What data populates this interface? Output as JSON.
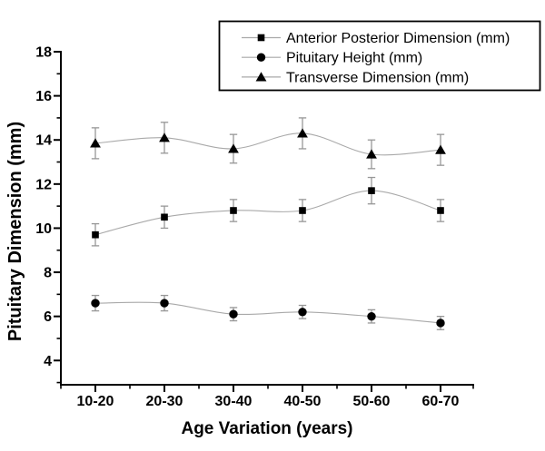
{
  "chart_data": {
    "type": "line",
    "title": "",
    "xlabel": "Age Variation (years)",
    "ylabel": "Pituitary Dimension (mm)",
    "categories": [
      "10-20",
      "20-30",
      "30-40",
      "40-50",
      "50-60",
      "60-70"
    ],
    "series": [
      {
        "name": "Anterior Posterior Dimension (mm)",
        "marker": "square",
        "values": [
          9.7,
          10.5,
          10.8,
          10.8,
          11.7,
          10.8
        ],
        "errors": [
          0.5,
          0.5,
          0.5,
          0.5,
          0.6,
          0.5
        ]
      },
      {
        "name": "Pituitary Height (mm)",
        "marker": "circle",
        "values": [
          6.6,
          6.6,
          6.1,
          6.2,
          6.0,
          5.7
        ],
        "errors": [
          0.35,
          0.35,
          0.3,
          0.3,
          0.3,
          0.3
        ]
      },
      {
        "name": "Transverse Dimension (mm)",
        "marker": "triangle",
        "values": [
          13.85,
          14.1,
          13.6,
          14.3,
          13.35,
          13.55
        ],
        "errors": [
          0.7,
          0.7,
          0.65,
          0.7,
          0.65,
          0.7
        ]
      }
    ],
    "ylim": [
      2.9,
      18
    ],
    "yticks_major": [
      4,
      6,
      8,
      10,
      12,
      14,
      16,
      18
    ],
    "yticks_minor": [
      3,
      5,
      7,
      9,
      11,
      13,
      15,
      17
    ],
    "legend_position": "top-right",
    "grid": false,
    "errorbars": true,
    "line_style": "smooth",
    "colors": {
      "marker": "#000000",
      "line": "#a9a9a9",
      "error": "#979797",
      "axis": "#000000",
      "background": "#ffffff"
    }
  }
}
